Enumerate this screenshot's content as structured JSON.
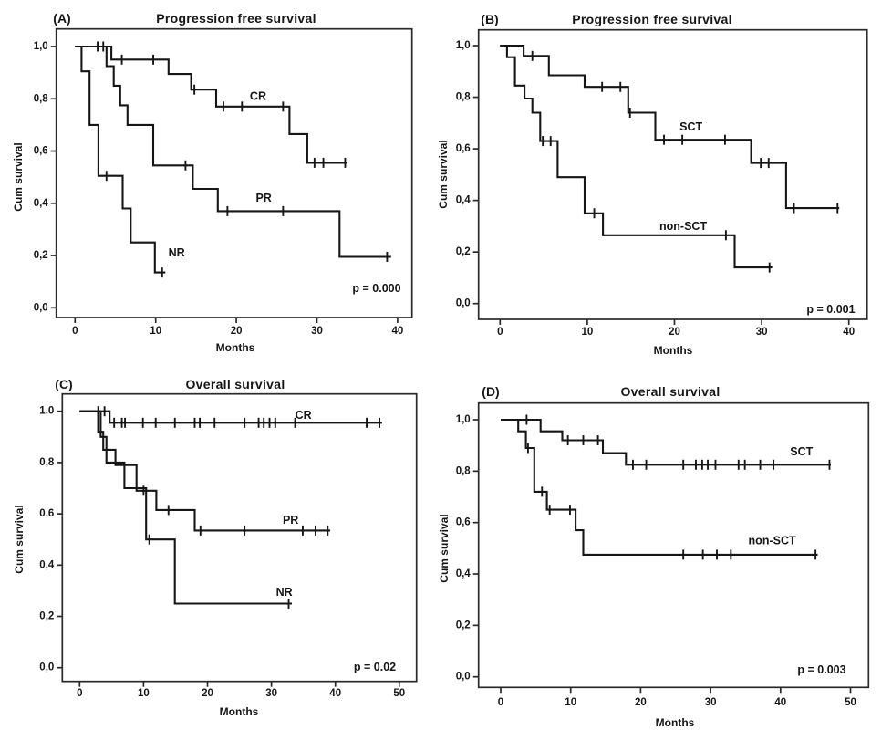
{
  "figure": {
    "background": "#ffffff",
    "ink_color": "#161616",
    "description": "Four-panel Kaplan-Meier survival figure"
  },
  "chart_data": [
    {
      "type": "line",
      "panel_label": "(A)",
      "title": "Progression free survival",
      "xlabel": "Months",
      "ylabel": "Cum survival",
      "p_label": "p = 0.000",
      "x_ticks": [
        "0",
        "10",
        "20",
        "30",
        "40"
      ],
      "x_tick_values": [
        0,
        10,
        20,
        30,
        40
      ],
      "y_tick_labels": [
        "1,0",
        "0,8",
        "0,6",
        "0,4",
        "0,2",
        "0,0"
      ],
      "y_tick_values": [
        1.0,
        0.8,
        0.6,
        0.4,
        0.2,
        0.0
      ],
      "xlim": [
        0,
        40
      ],
      "ylim": [
        0,
        1
      ],
      "grid": false,
      "legend_position": "inline",
      "series": [
        {
          "name": "CR",
          "label": "CR",
          "label_pos": [
            22.7,
            0.81
          ],
          "points": [
            [
              0,
              1.0
            ],
            [
              4.5,
              0.95
            ],
            [
              11.6,
              0.895
            ],
            [
              14.4,
              0.835
            ],
            [
              17.5,
              0.77
            ],
            [
              26.6,
              0.665
            ],
            [
              28.8,
              0.555
            ],
            [
              33.8,
              0.555
            ]
          ],
          "censors": [
            [
              2.8,
              1.0
            ],
            [
              5.8,
              0.95
            ],
            [
              9.7,
              0.95
            ],
            [
              14.8,
              0.835
            ],
            [
              18.4,
              0.77
            ],
            [
              20.7,
              0.77
            ],
            [
              25.8,
              0.77
            ],
            [
              29.7,
              0.555
            ],
            [
              30.8,
              0.555
            ],
            [
              33.5,
              0.555
            ]
          ]
        },
        {
          "name": "PR",
          "label": "PR",
          "label_pos": [
            23.4,
            0.42
          ],
          "points": [
            [
              0,
              1.0
            ],
            [
              3.9,
              0.925
            ],
            [
              4.8,
              0.85
            ],
            [
              5.6,
              0.775
            ],
            [
              6.5,
              0.7
            ],
            [
              9.7,
              0.545
            ],
            [
              14.6,
              0.455
            ],
            [
              17.7,
              0.37
            ],
            [
              32.8,
              0.195
            ],
            [
              39.2,
              0.195
            ]
          ],
          "censors": [
            [
              3.5,
              1.0
            ],
            [
              13.7,
              0.545
            ],
            [
              18.9,
              0.37
            ],
            [
              25.8,
              0.37
            ],
            [
              38.7,
              0.195
            ]
          ]
        },
        {
          "name": "NR",
          "label": "NR",
          "label_pos": [
            12.6,
            0.21
          ],
          "points": [
            [
              0,
              1.0
            ],
            [
              0.8,
              0.905
            ],
            [
              1.8,
              0.7
            ],
            [
              2.9,
              0.505
            ],
            [
              5.9,
              0.38
            ],
            [
              6.9,
              0.25
            ],
            [
              9.9,
              0.135
            ],
            [
              11.2,
              0.135
            ]
          ],
          "censors": [
            [
              3.9,
              0.505
            ],
            [
              10.8,
              0.135
            ]
          ]
        }
      ]
    },
    {
      "type": "line",
      "panel_label": "(B)",
      "title": "Progression free survival",
      "xlabel": "Months",
      "ylabel": "Cum survival",
      "p_label": "p = 0.001",
      "x_ticks": [
        "0",
        "10",
        "20",
        "30",
        "40"
      ],
      "x_tick_values": [
        0,
        10,
        20,
        30,
        40
      ],
      "y_tick_labels": [
        "1,0",
        "0,8",
        "0,6",
        "0,4",
        "0,2",
        "0,0"
      ],
      "y_tick_values": [
        1.0,
        0.8,
        0.6,
        0.4,
        0.2,
        0.0
      ],
      "xlim": [
        0,
        40
      ],
      "ylim": [
        0,
        1
      ],
      "grid": false,
      "legend_position": "inline",
      "series": [
        {
          "name": "SCT",
          "label": "SCT",
          "label_pos": [
            21.9,
            0.685
          ],
          "points": [
            [
              0,
              1.0
            ],
            [
              2.7,
              0.96
            ],
            [
              5.6,
              0.885
            ],
            [
              9.7,
              0.84
            ],
            [
              14.7,
              0.74
            ],
            [
              17.8,
              0.635
            ],
            [
              28.8,
              0.545
            ],
            [
              32.8,
              0.37
            ],
            [
              38.9,
              0.37
            ]
          ],
          "censors": [
            [
              3.7,
              0.96
            ],
            [
              11.7,
              0.84
            ],
            [
              13.8,
              0.84
            ],
            [
              14.9,
              0.74
            ],
            [
              18.8,
              0.635
            ],
            [
              20.9,
              0.635
            ],
            [
              25.8,
              0.635
            ],
            [
              29.9,
              0.545
            ],
            [
              30.8,
              0.545
            ],
            [
              33.7,
              0.37
            ],
            [
              38.7,
              0.37
            ]
          ]
        },
        {
          "name": "non-SCT",
          "label": "non-SCT",
          "label_pos": [
            21.0,
            0.3
          ],
          "points": [
            [
              0,
              1.0
            ],
            [
              0.8,
              0.955
            ],
            [
              1.7,
              0.845
            ],
            [
              2.8,
              0.795
            ],
            [
              3.7,
              0.74
            ],
            [
              4.6,
              0.63
            ],
            [
              6.6,
              0.49
            ],
            [
              9.7,
              0.35
            ],
            [
              11.8,
              0.265
            ],
            [
              26.9,
              0.14
            ],
            [
              31.2,
              0.14
            ]
          ],
          "censors": [
            [
              4.9,
              0.63
            ],
            [
              5.8,
              0.63
            ],
            [
              10.8,
              0.35
            ],
            [
              25.9,
              0.265
            ],
            [
              30.9,
              0.14
            ]
          ]
        }
      ]
    },
    {
      "type": "line",
      "panel_label": "(C)",
      "title": "Overall survival",
      "xlabel": "Months",
      "ylabel": "Cum survival",
      "p_label": "p = 0.02",
      "x_ticks": [
        "0",
        "10",
        "20",
        "30",
        "40",
        "50"
      ],
      "x_tick_values": [
        0,
        10,
        20,
        30,
        40,
        50
      ],
      "y_tick_labels": [
        "1,0",
        "0,8",
        "0,6",
        "0,4",
        "0,2",
        "0,0"
      ],
      "y_tick_values": [
        1.0,
        0.8,
        0.6,
        0.4,
        0.2,
        0.0
      ],
      "xlim": [
        0,
        50
      ],
      "ylim": [
        0,
        1
      ],
      "grid": false,
      "legend_position": "inline",
      "series": [
        {
          "name": "CR",
          "label": "CR",
          "label_pos": [
            35.0,
            0.985
          ],
          "points": [
            [
              0,
              1.0
            ],
            [
              4.7,
              0.955
            ],
            [
              47.3,
              0.955
            ]
          ],
          "censors": [
            [
              2.9,
              1.0
            ],
            [
              3.9,
              1.0
            ],
            [
              5.4,
              0.955
            ],
            [
              6.6,
              0.955
            ],
            [
              7.1,
              0.955
            ],
            [
              9.9,
              0.955
            ],
            [
              11.9,
              0.955
            ],
            [
              14.9,
              0.955
            ],
            [
              18.0,
              0.955
            ],
            [
              18.8,
              0.955
            ],
            [
              21.1,
              0.955
            ],
            [
              25.8,
              0.955
            ],
            [
              28.0,
              0.955
            ],
            [
              28.8,
              0.955
            ],
            [
              29.7,
              0.955
            ],
            [
              30.6,
              0.955
            ],
            [
              33.7,
              0.955
            ],
            [
              44.9,
              0.955
            ],
            [
              46.9,
              0.955
            ]
          ]
        },
        {
          "name": "PR",
          "label": "PR",
          "label_pos": [
            33.0,
            0.575
          ],
          "points": [
            [
              0,
              1.0
            ],
            [
              2.9,
              0.92
            ],
            [
              3.7,
              0.85
            ],
            [
              5.6,
              0.79
            ],
            [
              8.9,
              0.69
            ],
            [
              12.0,
              0.615
            ],
            [
              18.0,
              0.535
            ],
            [
              39.2,
              0.535
            ]
          ],
          "censors": [
            [
              10.0,
              0.69
            ],
            [
              13.9,
              0.615
            ],
            [
              18.9,
              0.535
            ],
            [
              25.8,
              0.535
            ],
            [
              34.9,
              0.535
            ],
            [
              36.9,
              0.535
            ],
            [
              38.8,
              0.535
            ]
          ]
        },
        {
          "name": "NR",
          "label": "NR",
          "label_pos": [
            32.0,
            0.295
          ],
          "points": [
            [
              0,
              1.0
            ],
            [
              3.3,
              0.9
            ],
            [
              4.2,
              0.8
            ],
            [
              7.0,
              0.7
            ],
            [
              10.4,
              0.5
            ],
            [
              14.9,
              0.25
            ],
            [
              33.2,
              0.25
            ]
          ],
          "censors": [
            [
              10.9,
              0.5
            ],
            [
              32.7,
              0.25
            ]
          ]
        }
      ]
    },
    {
      "type": "line",
      "panel_label": "(D)",
      "title": "Overall survival",
      "xlabel": "Months",
      "ylabel": "Cum survival",
      "p_label": "p = 0.003",
      "x_ticks": [
        "0",
        "10",
        "20",
        "30",
        "40",
        "50"
      ],
      "x_tick_values": [
        0,
        10,
        20,
        30,
        40,
        50
      ],
      "y_tick_labels": [
        "1,0",
        "0,8",
        "0,6",
        "0,4",
        "0,2",
        "0,0"
      ],
      "y_tick_values": [
        1.0,
        0.8,
        0.6,
        0.4,
        0.2,
        0.0
      ],
      "xlim": [
        0,
        50
      ],
      "ylim": [
        0,
        1
      ],
      "grid": false,
      "legend_position": "inline",
      "series": [
        {
          "name": "SCT",
          "label": "SCT",
          "label_pos": [
            43.0,
            0.875
          ],
          "points": [
            [
              0,
              1.0
            ],
            [
              5.7,
              0.955
            ],
            [
              8.8,
              0.92
            ],
            [
              14.6,
              0.87
            ],
            [
              17.9,
              0.825
            ],
            [
              47.2,
              0.825
            ]
          ],
          "censors": [
            [
              3.7,
              1.0
            ],
            [
              9.6,
              0.92
            ],
            [
              11.8,
              0.92
            ],
            [
              13.9,
              0.92
            ],
            [
              18.9,
              0.825
            ],
            [
              20.8,
              0.825
            ],
            [
              26.1,
              0.825
            ],
            [
              27.9,
              0.825
            ],
            [
              28.8,
              0.825
            ],
            [
              29.6,
              0.825
            ],
            [
              30.7,
              0.825
            ],
            [
              34.0,
              0.825
            ],
            [
              34.9,
              0.825
            ],
            [
              37.1,
              0.825
            ],
            [
              39.0,
              0.825
            ],
            [
              47.0,
              0.825
            ]
          ]
        },
        {
          "name": "non-SCT",
          "label": "non-SCT",
          "label_pos": [
            38.8,
            0.53
          ],
          "points": [
            [
              0,
              1.0
            ],
            [
              2.5,
              0.955
            ],
            [
              3.6,
              0.89
            ],
            [
              4.8,
              0.72
            ],
            [
              6.6,
              0.65
            ],
            [
              10.7,
              0.57
            ],
            [
              11.8,
              0.475
            ],
            [
              45.3,
              0.475
            ]
          ],
          "censors": [
            [
              3.9,
              0.89
            ],
            [
              5.9,
              0.72
            ],
            [
              7.0,
              0.65
            ],
            [
              9.9,
              0.65
            ],
            [
              26.1,
              0.475
            ],
            [
              28.9,
              0.475
            ],
            [
              30.9,
              0.475
            ],
            [
              32.9,
              0.475
            ],
            [
              45.0,
              0.475
            ]
          ]
        }
      ]
    }
  ]
}
